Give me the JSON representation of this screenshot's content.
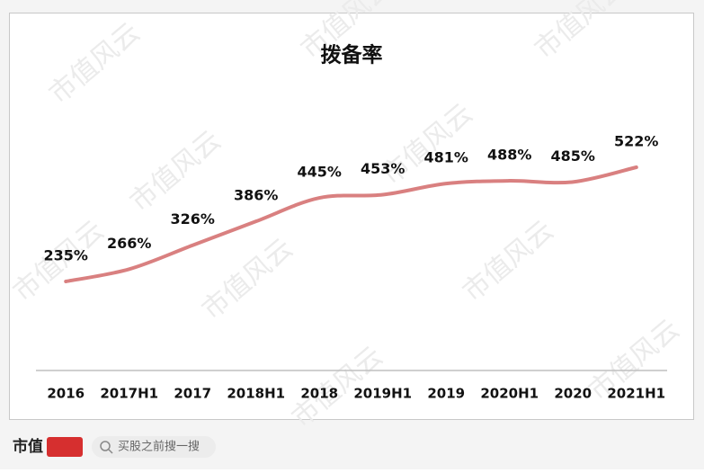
{
  "chart_data": {
    "type": "line",
    "title": "拨备率",
    "categories": [
      "2016",
      "2017H1",
      "2017",
      "2018H1",
      "2018",
      "2019H1",
      "2019",
      "2020H1",
      "2020",
      "2021H1"
    ],
    "series": [
      {
        "color": "#d98080",
        "values": [
          235,
          266,
          326,
          386,
          445,
          453,
          481,
          488,
          485,
          522
        ],
        "value_labels": [
          "235%",
          "266%",
          "326%",
          "386%",
          "445%",
          "453%",
          "481%",
          "488%",
          "485%",
          "522%"
        ]
      }
    ],
    "smooth": true
  },
  "watermark": "市值风云",
  "footer": {
    "logo": "市值",
    "search": "买股之前搜一搜"
  }
}
